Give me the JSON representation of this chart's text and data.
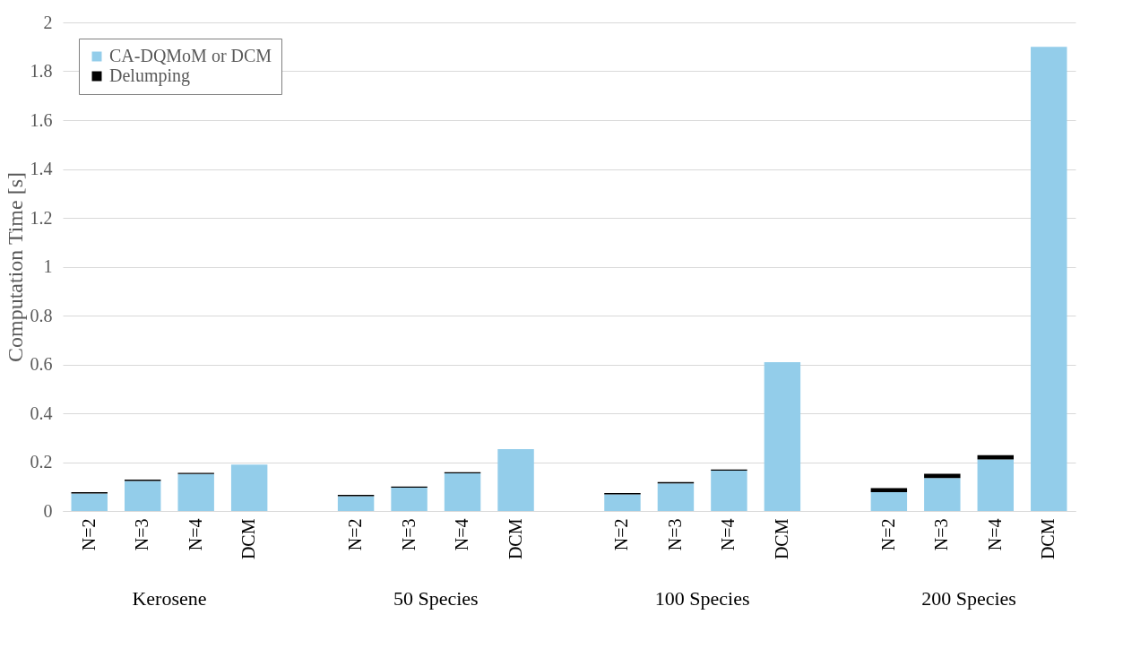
{
  "chart_data": {
    "type": "bar",
    "stacked": true,
    "ylabel": "Computation Time [s]",
    "categories": [
      "N=2",
      "N=3",
      "N=4",
      "DCM",
      null,
      "N=2",
      "N=3",
      "N=4",
      "DCM",
      null,
      "N=2",
      "N=3",
      "N=4",
      "DCM",
      null,
      "N=2",
      "N=3",
      "N=4",
      "DCM"
    ],
    "series": [
      {
        "name": "CA-DQMoM or DCM",
        "color": "#93cdea",
        "values": [
          0.072,
          0.123,
          0.151,
          0.19,
          null,
          0.061,
          0.095,
          0.154,
          0.253,
          null,
          0.068,
          0.113,
          0.165,
          0.609,
          null,
          0.077,
          0.135,
          0.211,
          1.9
        ]
      },
      {
        "name": "Delumping",
        "color": "#000000",
        "values": [
          0.005,
          0.005,
          0.005,
          0,
          null,
          0.005,
          0.005,
          0.005,
          0,
          null,
          0.005,
          0.005,
          0.005,
          0,
          null,
          0.017,
          0.017,
          0.017,
          0
        ]
      }
    ],
    "annotations": [
      "Kerosene",
      "50 Species",
      "100 Species",
      "200 Species"
    ],
    "ylim": [
      0,
      2
    ],
    "yticks": [
      0,
      0.2,
      0.4,
      0.6,
      0.8,
      1,
      1.2,
      1.4,
      1.6,
      1.8,
      2
    ],
    "grid": "y",
    "legend": "top left"
  }
}
